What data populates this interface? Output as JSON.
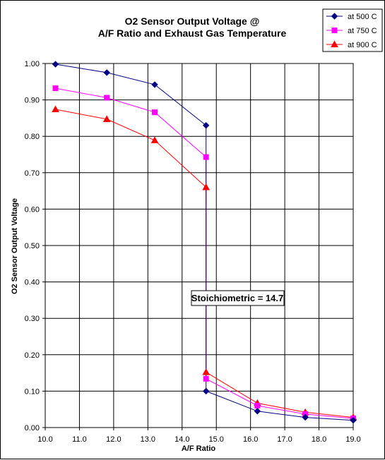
{
  "chart_data": {
    "type": "line",
    "title": "O2 Sensor Output Voltage @",
    "subtitle": "A/F Ratio and Exhaust Gas Temperature",
    "xlabel": "A/F Ratio",
    "ylabel": "O2 Sensor Output Voltage",
    "xlim": [
      10.0,
      19.0
    ],
    "ylim": [
      0.0,
      1.0
    ],
    "xticks": [
      "10.0",
      "11.0",
      "12.0",
      "13.0",
      "14.0",
      "15.0",
      "16.0",
      "17.0",
      "18.0",
      "19.0"
    ],
    "yticks": [
      "0.00",
      "0.10",
      "0.20",
      "0.30",
      "0.40",
      "0.50",
      "0.60",
      "0.70",
      "0.80",
      "0.90",
      "1.00"
    ],
    "grid": true,
    "legend_position": "top-right",
    "annotation": "Stoichiometric = 14.7",
    "series": [
      {
        "name": "at 500 C",
        "color": "#000080",
        "marker": "diamond",
        "points": [
          [
            10.3,
            0.998
          ],
          [
            11.8,
            0.975
          ],
          [
            13.2,
            0.942
          ],
          [
            14.7,
            0.83
          ],
          [
            14.7,
            0.1
          ],
          [
            16.2,
            0.045
          ],
          [
            17.6,
            0.028
          ],
          [
            19.0,
            0.02
          ]
        ]
      },
      {
        "name": "at 750 C",
        "color": "#ff00ff",
        "marker": "square",
        "points": [
          [
            10.3,
            0.932
          ],
          [
            11.8,
            0.906
          ],
          [
            13.2,
            0.866
          ],
          [
            14.7,
            0.743
          ],
          [
            14.7,
            0.134
          ],
          [
            16.2,
            0.06
          ],
          [
            17.6,
            0.037
          ],
          [
            19.0,
            0.025
          ]
        ]
      },
      {
        "name": "at 900 C",
        "color": "#ff0000",
        "marker": "triangle",
        "points": [
          [
            10.3,
            0.874
          ],
          [
            11.8,
            0.847
          ],
          [
            13.2,
            0.789
          ],
          [
            14.7,
            0.66
          ],
          [
            14.7,
            0.152
          ],
          [
            16.2,
            0.067
          ],
          [
            17.6,
            0.042
          ],
          [
            19.0,
            0.028
          ]
        ]
      }
    ]
  }
}
